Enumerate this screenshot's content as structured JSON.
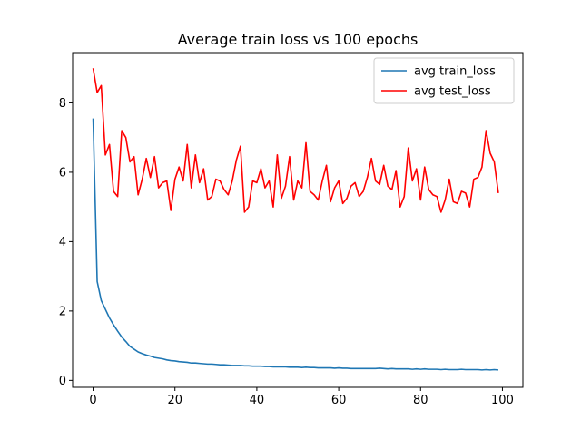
{
  "chart_data": {
    "type": "line",
    "title": "Average train loss vs 100 epochs",
    "xlabel": "",
    "ylabel": "",
    "xlim": [
      -5,
      105
    ],
    "ylim": [
      -0.2,
      9.45
    ],
    "xticks": [
      0,
      20,
      40,
      60,
      80,
      100
    ],
    "yticks": [
      0,
      2,
      4,
      6,
      8
    ],
    "grid": false,
    "legend_position": "top-right",
    "series": [
      {
        "name": "avg train_loss",
        "color": "#1f77b4",
        "x": [
          0,
          1,
          2,
          3,
          4,
          5,
          6,
          7,
          8,
          9,
          10,
          11,
          12,
          13,
          14,
          15,
          16,
          17,
          18,
          19,
          20,
          21,
          22,
          23,
          24,
          25,
          26,
          27,
          28,
          29,
          30,
          31,
          32,
          33,
          34,
          35,
          36,
          37,
          38,
          39,
          40,
          41,
          42,
          43,
          44,
          45,
          46,
          47,
          48,
          49,
          50,
          51,
          52,
          53,
          54,
          55,
          56,
          57,
          58,
          59,
          60,
          61,
          62,
          63,
          64,
          65,
          66,
          67,
          68,
          69,
          70,
          71,
          72,
          73,
          74,
          75,
          76,
          77,
          78,
          79,
          80,
          81,
          82,
          83,
          84,
          85,
          86,
          87,
          88,
          89,
          90,
          91,
          92,
          93,
          94,
          95,
          96,
          97,
          98,
          99
        ],
        "y": [
          7.55,
          2.85,
          2.3,
          2.05,
          1.8,
          1.6,
          1.42,
          1.25,
          1.12,
          0.98,
          0.9,
          0.82,
          0.77,
          0.73,
          0.7,
          0.66,
          0.64,
          0.62,
          0.59,
          0.57,
          0.56,
          0.54,
          0.53,
          0.52,
          0.5,
          0.5,
          0.49,
          0.48,
          0.47,
          0.47,
          0.46,
          0.45,
          0.45,
          0.44,
          0.43,
          0.43,
          0.43,
          0.42,
          0.42,
          0.41,
          0.41,
          0.41,
          0.4,
          0.4,
          0.39,
          0.39,
          0.39,
          0.39,
          0.38,
          0.38,
          0.38,
          0.37,
          0.38,
          0.37,
          0.37,
          0.36,
          0.36,
          0.36,
          0.36,
          0.35,
          0.36,
          0.35,
          0.35,
          0.34,
          0.34,
          0.34,
          0.34,
          0.34,
          0.34,
          0.34,
          0.35,
          0.34,
          0.33,
          0.34,
          0.33,
          0.33,
          0.33,
          0.33,
          0.32,
          0.33,
          0.32,
          0.33,
          0.32,
          0.32,
          0.32,
          0.31,
          0.32,
          0.31,
          0.31,
          0.31,
          0.32,
          0.31,
          0.31,
          0.31,
          0.31,
          0.3,
          0.31,
          0.3,
          0.31,
          0.3
        ]
      },
      {
        "name": "avg test_loss",
        "color": "#ff0000",
        "x": [
          0,
          1,
          2,
          3,
          4,
          5,
          6,
          7,
          8,
          9,
          10,
          11,
          12,
          13,
          14,
          15,
          16,
          17,
          18,
          19,
          20,
          21,
          22,
          23,
          24,
          25,
          26,
          27,
          28,
          29,
          30,
          31,
          32,
          33,
          34,
          35,
          36,
          37,
          38,
          39,
          40,
          41,
          42,
          43,
          44,
          45,
          46,
          47,
          48,
          49,
          50,
          51,
          52,
          53,
          54,
          55,
          56,
          57,
          58,
          59,
          60,
          61,
          62,
          63,
          64,
          65,
          66,
          67,
          68,
          69,
          70,
          71,
          72,
          73,
          74,
          75,
          76,
          77,
          78,
          79,
          80,
          81,
          82,
          83,
          84,
          85,
          86,
          87,
          88,
          89,
          90,
          91,
          92,
          93,
          94,
          95,
          96,
          97,
          98,
          99
        ],
        "y": [
          9.0,
          8.3,
          8.5,
          6.5,
          6.8,
          5.45,
          5.3,
          7.2,
          7.0,
          6.3,
          6.45,
          5.35,
          5.8,
          6.4,
          5.85,
          6.45,
          5.55,
          5.7,
          5.75,
          4.9,
          5.8,
          6.15,
          5.75,
          6.8,
          5.55,
          6.5,
          5.7,
          6.1,
          5.2,
          5.3,
          5.8,
          5.75,
          5.5,
          5.35,
          5.75,
          6.35,
          6.75,
          4.85,
          5.0,
          5.75,
          5.7,
          6.1,
          5.55,
          5.75,
          5.0,
          6.5,
          5.25,
          5.6,
          6.45,
          5.2,
          5.75,
          5.55,
          6.85,
          5.45,
          5.35,
          5.2,
          5.75,
          6.2,
          5.15,
          5.55,
          5.75,
          5.1,
          5.25,
          5.6,
          5.7,
          5.3,
          5.45,
          5.85,
          6.4,
          5.75,
          5.65,
          6.2,
          5.6,
          5.5,
          6.05,
          5.0,
          5.3,
          6.7,
          5.75,
          6.1,
          5.2,
          6.15,
          5.5,
          5.35,
          5.3,
          4.85,
          5.2,
          5.8,
          5.15,
          5.1,
          5.45,
          5.4,
          5.0,
          5.8,
          5.85,
          6.15,
          7.2,
          6.55,
          6.3,
          5.4
        ]
      }
    ]
  }
}
